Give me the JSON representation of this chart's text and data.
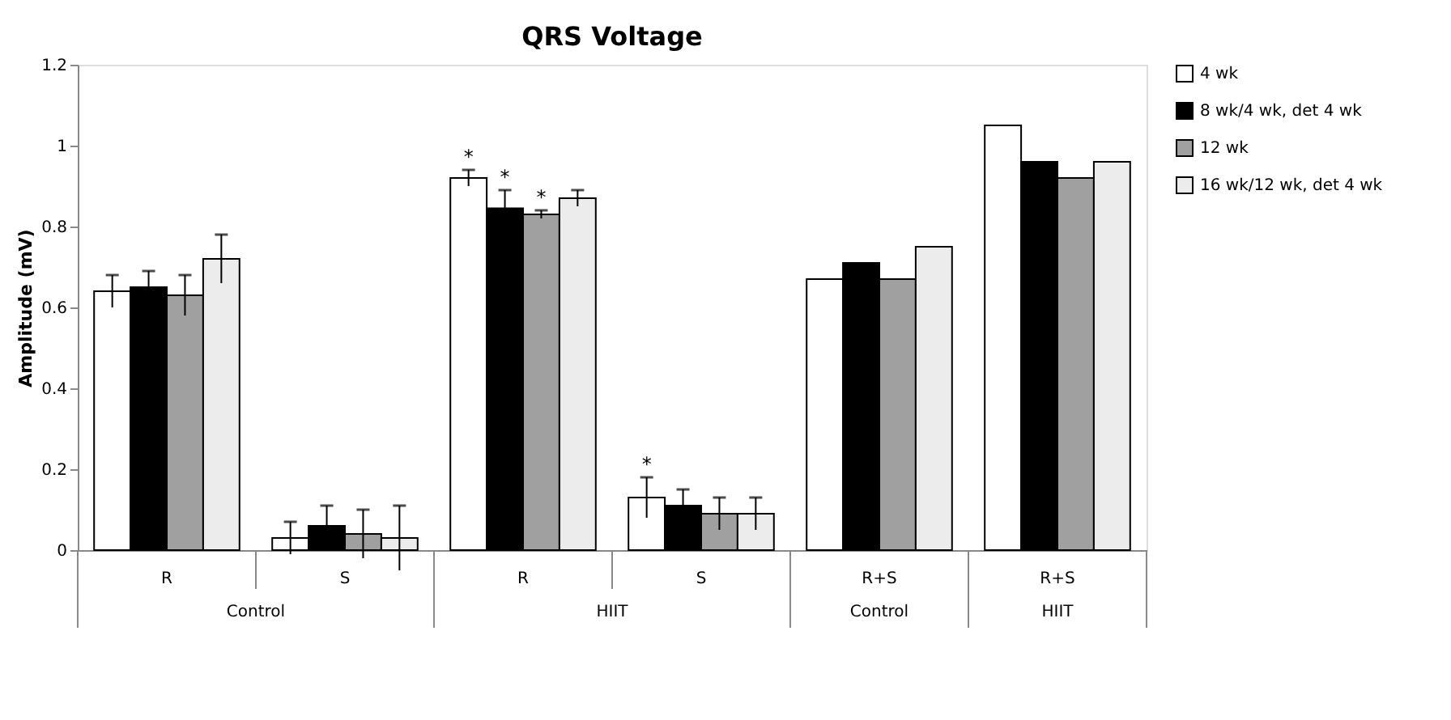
{
  "chart_data": {
    "type": "bar",
    "title": "QRS Voltage",
    "ylabel": "Amplitude (mV)",
    "categories": [
      "R",
      "S",
      "R",
      "S",
      "R+S",
      "R+S"
    ],
    "annotations": [
      "Control",
      "HIIT",
      "Control",
      "HIIT"
    ],
    "series": [
      {
        "name": "4 wk",
        "color": "#ffffff",
        "values": [
          0.64,
          0.03,
          0.92,
          0.13,
          0.67,
          1.05
        ],
        "errors": [
          0.04,
          0.04,
          0.02,
          0.05,
          null,
          null
        ],
        "value_labels": [
          null,
          null,
          "*",
          "*",
          null,
          null
        ]
      },
      {
        "name": "8 wk/4 wk, det 4 wk",
        "color": "#000000",
        "values": [
          0.65,
          0.06,
          0.845,
          0.11,
          0.71,
          0.96
        ],
        "errors": [
          0.04,
          0.05,
          0.045,
          0.04,
          null,
          null
        ],
        "value_labels": [
          null,
          null,
          "*",
          null,
          null,
          null
        ]
      },
      {
        "name": "12 wk",
        "color": "#a0a0a0",
        "values": [
          0.63,
          0.04,
          0.83,
          0.09,
          0.67,
          0.92
        ],
        "errors": [
          0.05,
          0.06,
          0.01,
          0.04,
          null,
          null
        ],
        "value_labels": [
          null,
          null,
          "*",
          null,
          null,
          null
        ]
      },
      {
        "name": "16 wk/12 wk, det 4 wk",
        "color": "#ececec",
        "values": [
          0.72,
          0.03,
          0.87,
          0.09,
          0.75,
          0.96
        ],
        "errors": [
          0.06,
          0.08,
          0.02,
          0.04,
          null,
          null
        ],
        "value_labels": [
          null,
          null,
          null,
          null,
          null,
          null
        ]
      }
    ],
    "ylim": [
      0,
      1.2
    ],
    "yticks": [
      0,
      0.2,
      0.4,
      0.6,
      0.8,
      1,
      1.2
    ],
    "grid": false,
    "legend": "right"
  }
}
